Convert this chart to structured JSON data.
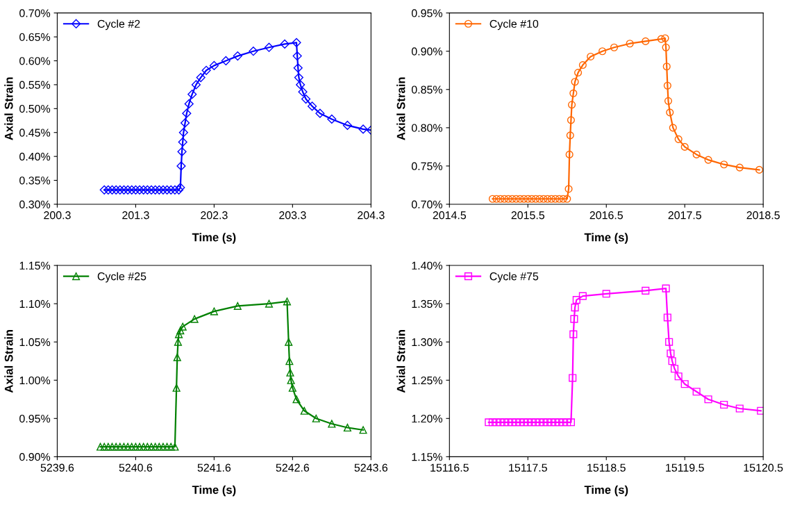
{
  "chart_data": [
    {
      "type": "line",
      "xlabel": "Time (s)",
      "ylabel": "Axial Strain",
      "marker": "diamond",
      "legend": "top left",
      "grid": false,
      "x": [
        200.9,
        200.95,
        201.0,
        201.05,
        201.1,
        201.15,
        201.2,
        201.25,
        201.3,
        201.35,
        201.4,
        201.45,
        201.5,
        201.55,
        201.6,
        201.65,
        201.7,
        201.75,
        201.8,
        201.85,
        201.87,
        201.88,
        201.89,
        201.9,
        201.91,
        201.93,
        201.95,
        201.98,
        202.02,
        202.07,
        202.13,
        202.2,
        202.3,
        202.45,
        202.6,
        202.8,
        203.0,
        203.2,
        203.35,
        203.36,
        203.37,
        203.38,
        203.4,
        203.43,
        203.47,
        203.55,
        203.65,
        203.8,
        204.0,
        204.2,
        204.3
      ],
      "series": [
        {
          "name": "Cycle #2",
          "color": "#0000ff",
          "values": [
            0.33,
            0.33,
            0.33,
            0.33,
            0.33,
            0.33,
            0.33,
            0.33,
            0.33,
            0.33,
            0.33,
            0.33,
            0.33,
            0.33,
            0.33,
            0.33,
            0.33,
            0.33,
            0.33,
            0.33,
            0.335,
            0.38,
            0.41,
            0.43,
            0.45,
            0.47,
            0.49,
            0.51,
            0.53,
            0.55,
            0.565,
            0.58,
            0.59,
            0.6,
            0.61,
            0.62,
            0.628,
            0.635,
            0.638,
            0.61,
            0.585,
            0.565,
            0.55,
            0.535,
            0.52,
            0.505,
            0.49,
            0.478,
            0.465,
            0.457,
            0.455
          ]
        }
      ],
      "xlim": [
        200.3,
        204.3
      ],
      "xticks": [
        200.3,
        201.3,
        202.3,
        203.3,
        204.3
      ],
      "ylim": [
        0.3,
        0.7
      ],
      "yticks": [
        {
          "value": 0.3,
          "label": "0.30%"
        },
        {
          "value": 0.35,
          "label": "0.35%"
        },
        {
          "value": 0.4,
          "label": "0.40%"
        },
        {
          "value": 0.45,
          "label": "0.45%"
        },
        {
          "value": 0.5,
          "label": "0.50%"
        },
        {
          "value": 0.55,
          "label": "0.55%"
        },
        {
          "value": 0.6,
          "label": "0.60%"
        },
        {
          "value": 0.65,
          "label": "0.65%"
        },
        {
          "value": 0.7,
          "label": "0.70%"
        }
      ]
    },
    {
      "type": "line",
      "xlabel": "Time (s)",
      "ylabel": "Axial Strain",
      "marker": "circle",
      "legend": "top left",
      "grid": false,
      "x": [
        2015.05,
        2015.1,
        2015.15,
        2015.2,
        2015.25,
        2015.3,
        2015.35,
        2015.4,
        2015.45,
        2015.5,
        2015.55,
        2015.6,
        2015.65,
        2015.7,
        2015.75,
        2015.8,
        2015.85,
        2015.9,
        2015.95,
        2016.0,
        2016.02,
        2016.03,
        2016.04,
        2016.05,
        2016.06,
        2016.08,
        2016.1,
        2016.14,
        2016.2,
        2016.3,
        2016.45,
        2016.6,
        2016.8,
        2017.0,
        2017.2,
        2017.25,
        2017.26,
        2017.27,
        2017.28,
        2017.29,
        2017.31,
        2017.35,
        2017.42,
        2017.5,
        2017.65,
        2017.8,
        2018.0,
        2018.2,
        2018.45
      ],
      "series": [
        {
          "name": "Cycle #10",
          "color": "#ff6600",
          "values": [
            0.707,
            0.707,
            0.707,
            0.707,
            0.707,
            0.707,
            0.707,
            0.707,
            0.707,
            0.707,
            0.707,
            0.707,
            0.707,
            0.707,
            0.707,
            0.707,
            0.707,
            0.707,
            0.707,
            0.707,
            0.72,
            0.765,
            0.79,
            0.81,
            0.83,
            0.845,
            0.86,
            0.872,
            0.882,
            0.893,
            0.9,
            0.905,
            0.91,
            0.913,
            0.916,
            0.917,
            0.905,
            0.88,
            0.855,
            0.835,
            0.82,
            0.8,
            0.785,
            0.775,
            0.765,
            0.758,
            0.752,
            0.748,
            0.745
          ]
        }
      ],
      "xlim": [
        2014.5,
        2018.5
      ],
      "xticks": [
        2014.5,
        2015.5,
        2016.5,
        2017.5,
        2018.5
      ],
      "ylim": [
        0.7,
        0.95
      ],
      "yticks": [
        {
          "value": 0.7,
          "label": "0.70%"
        },
        {
          "value": 0.75,
          "label": "0.75%"
        },
        {
          "value": 0.8,
          "label": "0.80%"
        },
        {
          "value": 0.85,
          "label": "0.85%"
        },
        {
          "value": 0.9,
          "label": "0.90%"
        },
        {
          "value": 0.95,
          "label": "0.95%"
        }
      ]
    },
    {
      "type": "line",
      "xlabel": "Time (s)",
      "ylabel": "Axial Strain",
      "marker": "triangle",
      "legend": "top left",
      "grid": false,
      "x": [
        5240.15,
        5240.2,
        5240.25,
        5240.3,
        5240.35,
        5240.4,
        5240.45,
        5240.5,
        5240.55,
        5240.6,
        5240.65,
        5240.7,
        5240.75,
        5240.8,
        5240.85,
        5240.9,
        5240.95,
        5241.0,
        5241.05,
        5241.1,
        5241.12,
        5241.13,
        5241.14,
        5241.15,
        5241.17,
        5241.2,
        5241.35,
        5241.6,
        5241.9,
        5242.3,
        5242.53,
        5242.55,
        5242.56,
        5242.57,
        5242.58,
        5242.6,
        5242.65,
        5242.75,
        5242.9,
        5243.1,
        5243.3,
        5243.5
      ],
      "series": [
        {
          "name": "Cycle #25",
          "color": "#008000",
          "values": [
            0.913,
            0.913,
            0.913,
            0.913,
            0.913,
            0.913,
            0.913,
            0.913,
            0.913,
            0.913,
            0.913,
            0.913,
            0.913,
            0.913,
            0.913,
            0.913,
            0.913,
            0.913,
            0.913,
            0.913,
            0.99,
            1.03,
            1.05,
            1.06,
            1.065,
            1.07,
            1.08,
            1.09,
            1.097,
            1.1,
            1.103,
            1.05,
            1.025,
            1.01,
            1.0,
            0.99,
            0.975,
            0.96,
            0.95,
            0.943,
            0.938,
            0.935
          ]
        }
      ],
      "xlim": [
        5239.6,
        5243.6
      ],
      "xticks": [
        5239.6,
        5240.6,
        5241.6,
        5242.6,
        5243.6
      ],
      "ylim": [
        0.9,
        1.15
      ],
      "yticks": [
        {
          "value": 0.9,
          "label": "0.90%"
        },
        {
          "value": 0.95,
          "label": "0.95%"
        },
        {
          "value": 1.0,
          "label": "1.00%"
        },
        {
          "value": 1.05,
          "label": "1.05%"
        },
        {
          "value": 1.1,
          "label": "1.10%"
        },
        {
          "value": 1.15,
          "label": "1.15%"
        }
      ]
    },
    {
      "type": "line",
      "xlabel": "Time (s)",
      "ylabel": "Axial Strain",
      "marker": "square",
      "legend": "top left",
      "grid": false,
      "x": [
        15117.0,
        15117.05,
        15117.1,
        15117.15,
        15117.2,
        15117.25,
        15117.3,
        15117.35,
        15117.4,
        15117.45,
        15117.5,
        15117.55,
        15117.6,
        15117.65,
        15117.7,
        15117.75,
        15117.8,
        15117.85,
        15117.9,
        15117.95,
        15118.0,
        15118.05,
        15118.07,
        15118.08,
        15118.09,
        15118.1,
        15118.12,
        15118.2,
        15118.5,
        15119.0,
        15119.26,
        15119.28,
        15119.3,
        15119.32,
        15119.34,
        15119.37,
        15119.42,
        15119.5,
        15119.65,
        15119.8,
        15120.0,
        15120.2,
        15120.47
      ],
      "series": [
        {
          "name": "Cycle #75",
          "color": "#ff00ff",
          "values": [
            1.195,
            1.195,
            1.195,
            1.195,
            1.195,
            1.195,
            1.195,
            1.195,
            1.195,
            1.195,
            1.195,
            1.195,
            1.195,
            1.195,
            1.195,
            1.195,
            1.195,
            1.195,
            1.195,
            1.195,
            1.195,
            1.195,
            1.253,
            1.31,
            1.33,
            1.345,
            1.355,
            1.36,
            1.363,
            1.367,
            1.37,
            1.332,
            1.3,
            1.285,
            1.275,
            1.265,
            1.255,
            1.245,
            1.235,
            1.225,
            1.218,
            1.213,
            1.21
          ]
        }
      ],
      "xlim": [
        15116.5,
        15120.5
      ],
      "xticks": [
        15116.5,
        15117.5,
        15118.5,
        15119.5,
        15120.5
      ],
      "ylim": [
        1.15,
        1.4
      ],
      "yticks": [
        {
          "value": 1.15,
          "label": "1.15%"
        },
        {
          "value": 1.2,
          "label": "1.20%"
        },
        {
          "value": 1.25,
          "label": "1.25%"
        },
        {
          "value": 1.3,
          "label": "1.30%"
        },
        {
          "value": 1.35,
          "label": "1.35%"
        },
        {
          "value": 1.4,
          "label": "1.40%"
        }
      ]
    }
  ]
}
